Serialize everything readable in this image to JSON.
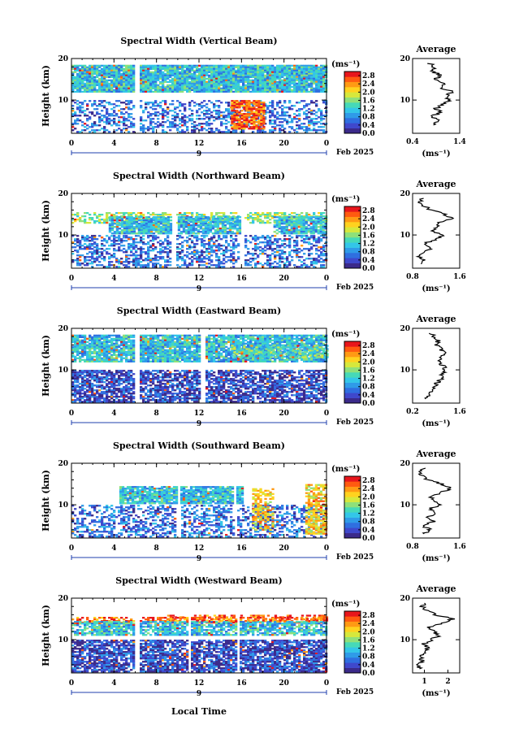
{
  "units_label": "(ms⁻¹)",
  "avg_title": "Average",
  "y_label": "Height (km)",
  "x_label": "Local Time",
  "date_label": "Feb 2025",
  "day_label": "9",
  "colors": {
    "palette": [
      "#3b2a8a",
      "#3f48cc",
      "#2f6fe0",
      "#2f9be8",
      "#33c6e8",
      "#46d9b8",
      "#8fe07a",
      "#d6e83c",
      "#ffd21f",
      "#ff9a14",
      "#ff5a10",
      "#e8161c"
    ]
  },
  "chart_data": [
    {
      "type": "heatmap",
      "title": "Spectral Width (Vertical Beam)",
      "x_ticks": [
        "0",
        "4",
        "8",
        "12",
        "16",
        "20",
        "0"
      ],
      "y_ticks": [
        "20",
        "10"
      ],
      "ylim": [
        2,
        20
      ],
      "xlim": [
        0,
        24
      ],
      "colorbar_ticks": [
        "2.8",
        "2.4",
        "2.0",
        "1.6",
        "1.2",
        "0.8",
        "0.4",
        "0.0"
      ],
      "average": {
        "xlim": [
          0.4,
          1.4
        ],
        "x_ticks": [
          "0.4",
          "1.4"
        ],
        "y_ticks": [
          "20",
          "10"
        ],
        "profile": [
          [
            0.85,
            4
          ],
          [
            0.95,
            5
          ],
          [
            0.8,
            6
          ],
          [
            1.0,
            7
          ],
          [
            0.9,
            8
          ],
          [
            1.05,
            9
          ],
          [
            1.2,
            10
          ],
          [
            1.1,
            11
          ],
          [
            1.25,
            12
          ],
          [
            1.0,
            13
          ],
          [
            1.1,
            14
          ],
          [
            0.9,
            15
          ],
          [
            1.0,
            16
          ],
          [
            0.8,
            17
          ],
          [
            0.85,
            18
          ],
          [
            0.75,
            19
          ]
        ]
      }
    },
    {
      "type": "heatmap",
      "title": "Spectral Width (Northward Beam)",
      "x_ticks": [
        "0",
        "4",
        "8",
        "12",
        "16",
        "20",
        "0"
      ],
      "y_ticks": [
        "20",
        "10"
      ],
      "ylim": [
        2,
        20
      ],
      "xlim": [
        0,
        24
      ],
      "colorbar_ticks": [
        "2.8",
        "2.4",
        "2.0",
        "1.6",
        "1.2",
        "0.8",
        "0.4",
        "0.0"
      ],
      "average": {
        "xlim": [
          0.8,
          1.6
        ],
        "x_ticks": [
          "0.8",
          "1.6"
        ],
        "y_ticks": [
          "20",
          "10"
        ],
        "profile": [
          [
            0.95,
            3
          ],
          [
            1.0,
            4
          ],
          [
            0.9,
            5
          ],
          [
            1.05,
            6
          ],
          [
            1.1,
            7
          ],
          [
            1.0,
            8
          ],
          [
            1.2,
            9
          ],
          [
            1.3,
            10
          ],
          [
            1.15,
            11
          ],
          [
            1.2,
            12
          ],
          [
            1.25,
            13
          ],
          [
            1.45,
            14
          ],
          [
            1.35,
            15
          ],
          [
            1.1,
            16
          ],
          [
            1.0,
            17
          ],
          [
            0.9,
            18
          ],
          [
            1.0,
            19
          ]
        ]
      }
    },
    {
      "type": "heatmap",
      "title": "Spectral Width (Eastward Beam)",
      "x_ticks": [
        "0",
        "4",
        "8",
        "12",
        "16",
        "20",
        "0"
      ],
      "y_ticks": [
        "20",
        "10"
      ],
      "ylim": [
        2,
        20
      ],
      "xlim": [
        0,
        24
      ],
      "colorbar_ticks": [
        "2.8",
        "2.4",
        "2.0",
        "1.6",
        "1.2",
        "0.8",
        "0.4",
        "0.0"
      ],
      "average": {
        "xlim": [
          0.2,
          1.6
        ],
        "x_ticks": [
          "0.2",
          "1.6"
        ],
        "y_ticks": [
          "20",
          "10"
        ],
        "profile": [
          [
            0.6,
            3
          ],
          [
            0.65,
            4
          ],
          [
            0.75,
            5
          ],
          [
            0.85,
            6
          ],
          [
            0.95,
            7
          ],
          [
            1.05,
            8
          ],
          [
            1.1,
            9
          ],
          [
            1.2,
            10
          ],
          [
            1.1,
            11
          ],
          [
            1.0,
            12
          ],
          [
            1.05,
            13
          ],
          [
            1.15,
            14
          ],
          [
            1.05,
            15
          ],
          [
            0.9,
            16
          ],
          [
            0.95,
            17
          ],
          [
            0.85,
            18
          ],
          [
            0.7,
            19
          ]
        ]
      }
    },
    {
      "type": "heatmap",
      "title": "Spectral Width (Southward Beam)",
      "x_ticks": [
        "0",
        "4",
        "8",
        "12",
        "16",
        "20",
        "0"
      ],
      "y_ticks": [
        "20",
        "10"
      ],
      "ylim": [
        2,
        20
      ],
      "xlim": [
        0,
        24
      ],
      "colorbar_ticks": [
        "2.8",
        "2.4",
        "2.0",
        "1.6",
        "1.2",
        "0.8",
        "0.4",
        "0.0"
      ],
      "average": {
        "xlim": [
          0.8,
          1.6
        ],
        "x_ticks": [
          "0.8",
          "1.6"
        ],
        "y_ticks": [
          "20",
          "10"
        ],
        "profile": [
          [
            1.0,
            3
          ],
          [
            1.1,
            4
          ],
          [
            0.95,
            5
          ],
          [
            1.15,
            6
          ],
          [
            1.05,
            7
          ],
          [
            1.2,
            8
          ],
          [
            1.1,
            9
          ],
          [
            1.25,
            10
          ],
          [
            1.15,
            11
          ],
          [
            1.1,
            12
          ],
          [
            1.3,
            13
          ],
          [
            1.45,
            14
          ],
          [
            1.3,
            15
          ],
          [
            1.05,
            16
          ],
          [
            0.95,
            17
          ],
          [
            0.9,
            18
          ],
          [
            1.0,
            19
          ]
        ]
      }
    },
    {
      "type": "heatmap",
      "title": "Spectral Width (Westward Beam)",
      "x_ticks": [
        "0",
        "4",
        "8",
        "12",
        "16",
        "20",
        "0"
      ],
      "y_ticks": [
        "20",
        "10"
      ],
      "ylim": [
        2,
        20
      ],
      "xlim": [
        0,
        24
      ],
      "colorbar_ticks": [
        "2.8",
        "2.4",
        "2.0",
        "1.6",
        "1.2",
        "0.8",
        "0.4",
        "0.0"
      ],
      "average": {
        "xlim": [
          0.5,
          2.5
        ],
        "x_ticks": [
          "1",
          "2"
        ],
        "y_ticks": [
          "20",
          "10"
        ],
        "profile": [
          [
            0.8,
            3
          ],
          [
            0.75,
            4
          ],
          [
            0.9,
            5
          ],
          [
            0.85,
            6
          ],
          [
            0.95,
            7
          ],
          [
            1.1,
            8
          ],
          [
            1.0,
            9
          ],
          [
            1.3,
            10
          ],
          [
            1.6,
            11
          ],
          [
            1.4,
            12
          ],
          [
            1.2,
            13
          ],
          [
            1.8,
            14
          ],
          [
            2.2,
            15
          ],
          [
            1.5,
            16
          ],
          [
            1.1,
            17
          ],
          [
            0.9,
            18
          ],
          [
            1.0,
            19
          ]
        ]
      }
    }
  ]
}
